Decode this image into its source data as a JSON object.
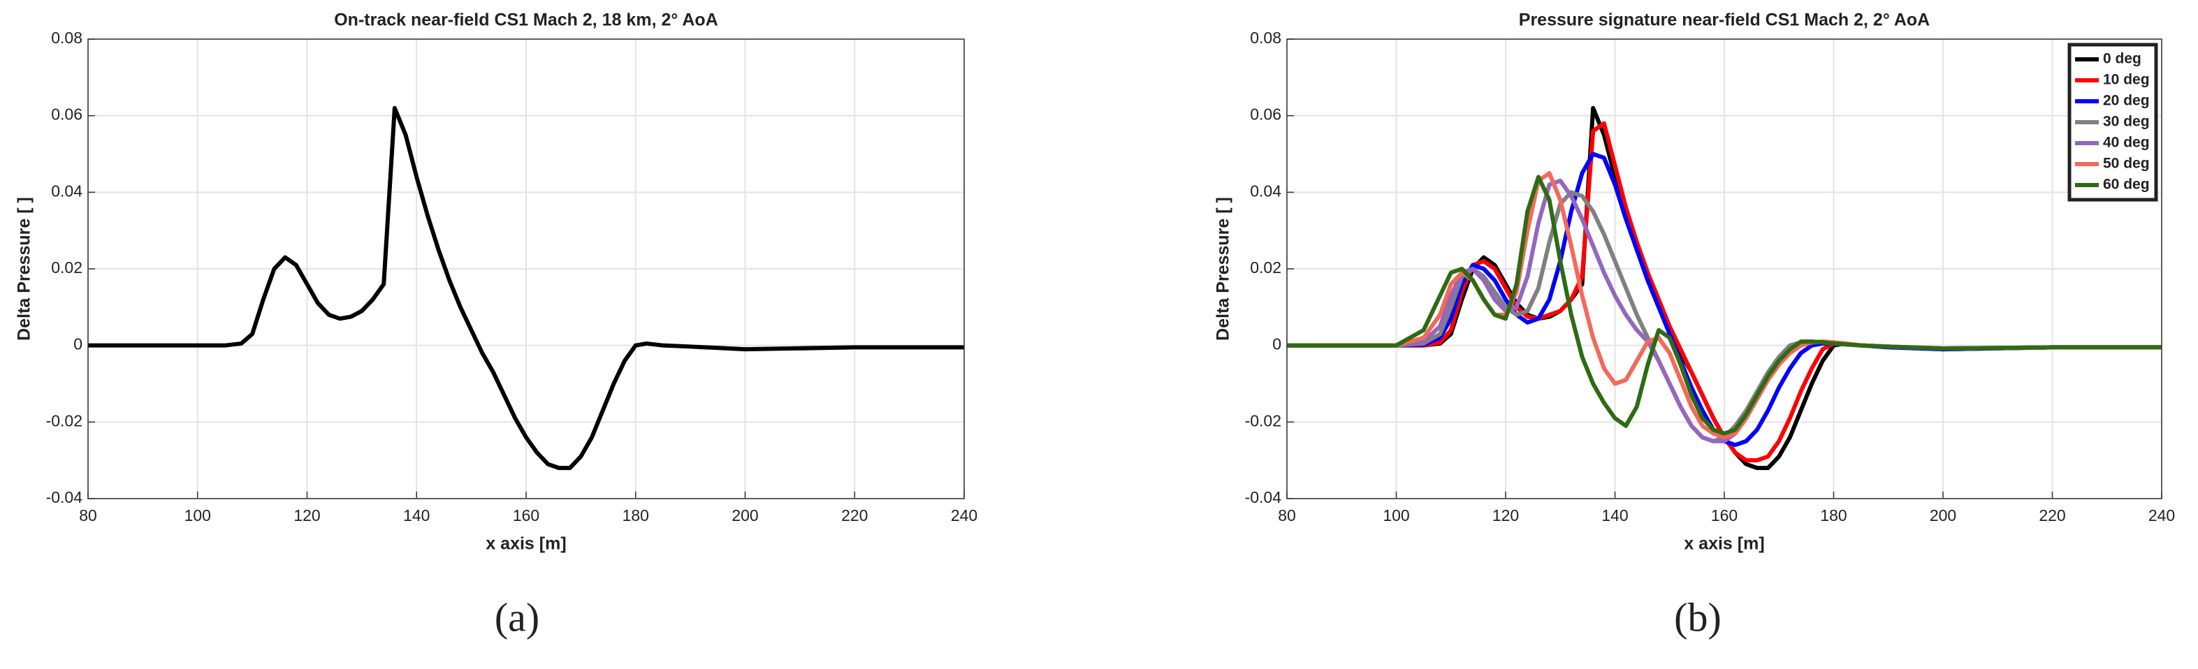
{
  "chart_data": [
    {
      "type": "line",
      "title": "On-track near-field CS1 Mach 2, 18 km, 2° AoA",
      "xlabel": "x axis [m]",
      "ylabel": "Delta Pressure [ ]",
      "caption": "(a)",
      "x": [
        80,
        100,
        105,
        108,
        110,
        112,
        114,
        116,
        118,
        120,
        122,
        124,
        126,
        128,
        130,
        132,
        134,
        136,
        138,
        140,
        142,
        144,
        146,
        148,
        150,
        152,
        154,
        156,
        158,
        160,
        162,
        164,
        166,
        168,
        170,
        172,
        174,
        176,
        178,
        180,
        182,
        185,
        190,
        200,
        220,
        240
      ],
      "values": [
        0,
        0,
        0,
        0.0005,
        0.003,
        0.012,
        0.02,
        0.023,
        0.021,
        0.016,
        0.011,
        0.008,
        0.007,
        0.0075,
        0.009,
        0.012,
        0.016,
        0.062,
        0.055,
        0.044,
        0.034,
        0.025,
        0.017,
        0.01,
        0.004,
        -0.002,
        -0.007,
        -0.013,
        -0.019,
        -0.024,
        -0.028,
        -0.031,
        -0.032,
        -0.032,
        -0.029,
        -0.024,
        -0.017,
        -0.01,
        -0.004,
        0,
        0.0005,
        0,
        -0.0003,
        -0.001,
        -0.0005,
        -0.0005
      ],
      "color": "#000000",
      "xlim": [
        80,
        240
      ],
      "xticks": [
        80,
        100,
        120,
        140,
        160,
        180,
        200,
        220,
        240
      ],
      "ylim": [
        -0.04,
        0.08
      ],
      "yticks": [
        -0.04,
        -0.02,
        0,
        0.02,
        0.04,
        0.06,
        0.08
      ],
      "grid": true
    },
    {
      "type": "line",
      "title": "Pressure signature near-field CS1 Mach 2, 2° AoA",
      "xlabel": "x axis [m]",
      "ylabel": "Delta Pressure [ ]",
      "caption": "(b)",
      "x": [
        80,
        100,
        105,
        108,
        110,
        112,
        114,
        116,
        118,
        120,
        122,
        124,
        126,
        128,
        130,
        132,
        134,
        136,
        138,
        140,
        142,
        144,
        146,
        148,
        150,
        152,
        154,
        156,
        158,
        160,
        162,
        164,
        166,
        168,
        170,
        172,
        174,
        176,
        178,
        180,
        182,
        185,
        190,
        200,
        220,
        240
      ],
      "series": [
        {
          "name": "0 deg",
          "color": "#000000",
          "values": [
            0,
            0,
            0,
            0.0005,
            0.003,
            0.012,
            0.02,
            0.023,
            0.021,
            0.016,
            0.011,
            0.008,
            0.007,
            0.0075,
            0.009,
            0.012,
            0.016,
            0.062,
            0.055,
            0.044,
            0.034,
            0.025,
            0.017,
            0.01,
            0.004,
            -0.002,
            -0.007,
            -0.013,
            -0.019,
            -0.024,
            -0.028,
            -0.031,
            -0.032,
            -0.032,
            -0.029,
            -0.024,
            -0.017,
            -0.01,
            -0.004,
            0,
            0.0005,
            0,
            -0.0003,
            -0.001,
            -0.0005,
            -0.0005
          ]
        },
        {
          "name": "10 deg",
          "color": "#ff0000",
          "values": [
            0,
            0,
            0,
            0.0008,
            0.004,
            0.014,
            0.021,
            0.022,
            0.02,
            0.015,
            0.01,
            0.0075,
            0.007,
            0.008,
            0.009,
            0.012,
            0.018,
            0.056,
            0.058,
            0.047,
            0.036,
            0.027,
            0.019,
            0.012,
            0.005,
            -0.001,
            -0.007,
            -0.013,
            -0.019,
            -0.024,
            -0.028,
            -0.03,
            -0.03,
            -0.029,
            -0.025,
            -0.019,
            -0.012,
            -0.006,
            -0.001,
            0.0005,
            0.0005,
            0,
            -0.0003,
            -0.001,
            -0.0005,
            -0.0005
          ]
        },
        {
          "name": "20 deg",
          "color": "#0000ff",
          "values": [
            0,
            0,
            0.0002,
            0.002,
            0.007,
            0.016,
            0.021,
            0.02,
            0.017,
            0.012,
            0.008,
            0.006,
            0.007,
            0.012,
            0.022,
            0.035,
            0.045,
            0.05,
            0.049,
            0.042,
            0.033,
            0.025,
            0.017,
            0.01,
            0.003,
            -0.004,
            -0.011,
            -0.017,
            -0.022,
            -0.025,
            -0.026,
            -0.025,
            -0.022,
            -0.017,
            -0.011,
            -0.006,
            -0.002,
            0,
            0.0005,
            0.0005,
            0.0003,
            0,
            -0.0005,
            -0.001,
            -0.0005,
            -0.0005
          ]
        },
        {
          "name": "30 deg",
          "color": "#808080",
          "values": [
            0,
            0,
            0.0005,
            0.003,
            0.01,
            0.018,
            0.02,
            0.018,
            0.014,
            0.01,
            0.008,
            0.009,
            0.015,
            0.027,
            0.037,
            0.04,
            0.039,
            0.035,
            0.029,
            0.022,
            0.015,
            0.008,
            0.002,
            -0.004,
            -0.01,
            -0.016,
            -0.021,
            -0.024,
            -0.025,
            -0.024,
            -0.021,
            -0.017,
            -0.012,
            -0.007,
            -0.003,
            0,
            0.0008,
            0.001,
            0.0008,
            0.0005,
            0.0003,
            0,
            -0.0003,
            -0.0008,
            -0.0005,
            -0.0005
          ]
        },
        {
          "name": "40 deg",
          "color": "#9467bd",
          "values": [
            0,
            0,
            0.001,
            0.005,
            0.013,
            0.019,
            0.02,
            0.017,
            0.012,
            0.009,
            0.01,
            0.018,
            0.032,
            0.042,
            0.043,
            0.039,
            0.033,
            0.026,
            0.019,
            0.013,
            0.008,
            0.004,
            0.001,
            -0.004,
            -0.01,
            -0.016,
            -0.021,
            -0.024,
            -0.025,
            -0.025,
            -0.023,
            -0.019,
            -0.014,
            -0.009,
            -0.005,
            -0.002,
            0,
            0.0008,
            0.001,
            0.0008,
            0.0005,
            0,
            -0.0003,
            -0.0008,
            -0.0005,
            -0.0005
          ]
        },
        {
          "name": "50 deg",
          "color": "#f4695a",
          "values": [
            0,
            0,
            0.002,
            0.008,
            0.016,
            0.019,
            0.017,
            0.012,
            0.008,
            0.008,
            0.014,
            0.03,
            0.043,
            0.045,
            0.038,
            0.026,
            0.013,
            0.002,
            -0.006,
            -0.01,
            -0.009,
            -0.004,
            0.001,
            0.002,
            -0.002,
            -0.009,
            -0.016,
            -0.021,
            -0.023,
            -0.024,
            -0.023,
            -0.019,
            -0.014,
            -0.009,
            -0.005,
            -0.002,
            0,
            0.0008,
            0.001,
            0.0008,
            0.0005,
            0,
            -0.0003,
            -0.0008,
            -0.0005,
            -0.0005
          ]
        },
        {
          "name": "60 deg",
          "color": "#2e6b12",
          "values": [
            0,
            0,
            0.004,
            0.013,
            0.019,
            0.02,
            0.017,
            0.012,
            0.008,
            0.007,
            0.016,
            0.035,
            0.044,
            0.038,
            0.022,
            0.008,
            -0.003,
            -0.01,
            -0.015,
            -0.019,
            -0.021,
            -0.016,
            -0.005,
            0.004,
            0.002,
            -0.005,
            -0.013,
            -0.019,
            -0.022,
            -0.023,
            -0.022,
            -0.018,
            -0.013,
            -0.008,
            -0.004,
            -0.001,
            0.001,
            0.001,
            0.0008,
            0.0005,
            0.0003,
            0,
            -0.0003,
            -0.0008,
            -0.0005,
            -0.0005
          ]
        }
      ],
      "legend": "upper right",
      "xlim": [
        80,
        240
      ],
      "xticks": [
        80,
        100,
        120,
        140,
        160,
        180,
        200,
        220,
        240
      ],
      "ylim": [
        -0.04,
        0.08
      ],
      "yticks": [
        -0.04,
        -0.02,
        0,
        0.02,
        0.04,
        0.06,
        0.08
      ],
      "grid": true
    }
  ]
}
